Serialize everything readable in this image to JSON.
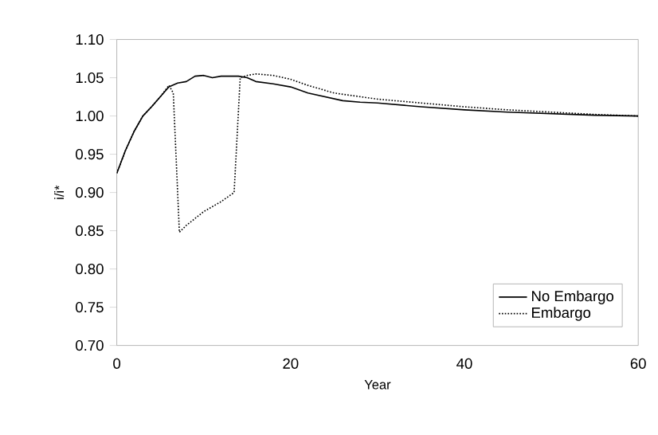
{
  "chart_data": {
    "type": "line",
    "xlabel": "Year",
    "ylabel": "i/i*",
    "xlim": [
      0,
      60
    ],
    "xticks": [
      0,
      20,
      40,
      60
    ],
    "ylim": [
      0.7,
      1.1
    ],
    "yticks": [
      {
        "value": 0.7,
        "label": "0.70"
      },
      {
        "value": 0.75,
        "label": "0.75"
      },
      {
        "value": 0.8,
        "label": "0.80"
      },
      {
        "value": 0.85,
        "label": "0.85"
      },
      {
        "value": 0.9,
        "label": "0.90"
      },
      {
        "value": 0.95,
        "label": "0.95"
      },
      {
        "value": 1.0,
        "label": "1.00"
      },
      {
        "value": 1.05,
        "label": "1.05"
      },
      {
        "value": 1.1,
        "label": "1.10"
      }
    ],
    "legend": "bottom right",
    "grid": false,
    "series": [
      {
        "name": "No Embargo",
        "color": "#000000",
        "line_style": "solid",
        "x": [
          0,
          1,
          2,
          3,
          4,
          5,
          6,
          7,
          8,
          9,
          10,
          11,
          12,
          13,
          14,
          15,
          16,
          18,
          20,
          22,
          24,
          26,
          28,
          30,
          35,
          40,
          45,
          50,
          55,
          60
        ],
        "values": [
          0.925,
          0.955,
          0.98,
          1.0,
          1.012,
          1.025,
          1.038,
          1.043,
          1.045,
          1.052,
          1.053,
          1.05,
          1.052,
          1.052,
          1.052,
          1.05,
          1.045,
          1.042,
          1.038,
          1.03,
          1.025,
          1.02,
          1.018,
          1.017,
          1.012,
          1.008,
          1.005,
          1.003,
          1.001,
          1.0
        ]
      },
      {
        "name": "Embargo",
        "color": "#000000",
        "line_style": "dotted",
        "x": [
          0,
          1,
          2,
          3,
          4,
          5,
          6,
          6.5,
          7.2,
          8,
          10,
          12,
          13.5,
          14.2,
          15,
          16,
          18,
          20,
          22,
          25,
          30,
          35,
          40,
          45,
          50,
          55,
          60
        ],
        "values": [
          0.925,
          0.955,
          0.98,
          1.0,
          1.012,
          1.025,
          1.04,
          1.03,
          0.848,
          0.857,
          0.875,
          0.888,
          0.9,
          1.05,
          1.053,
          1.055,
          1.053,
          1.048,
          1.04,
          1.03,
          1.022,
          1.017,
          1.012,
          1.008,
          1.005,
          1.002,
          1.0
        ]
      }
    ]
  }
}
